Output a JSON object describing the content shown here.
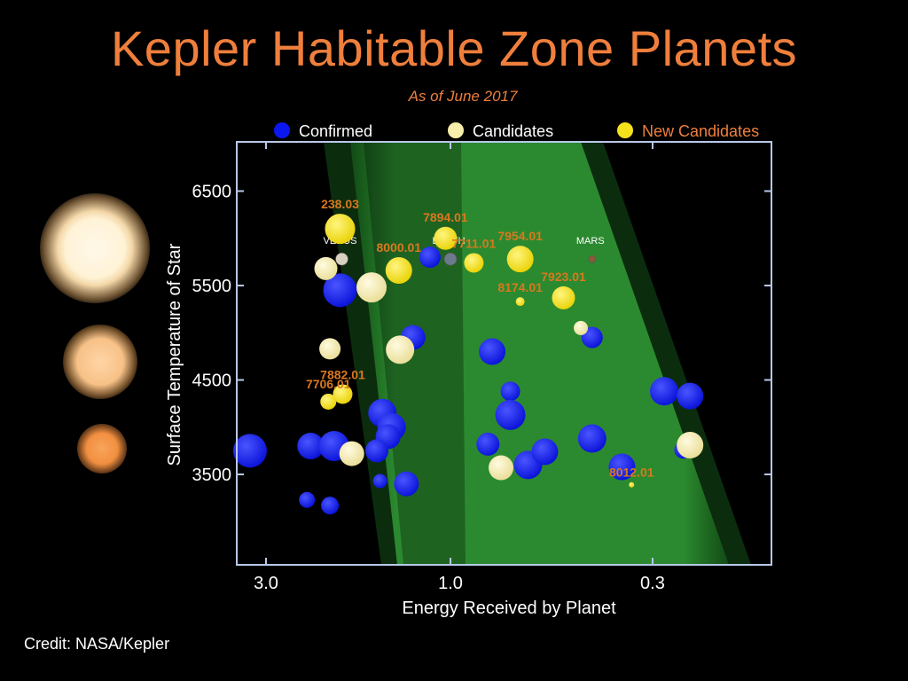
{
  "title": "Kepler Habitable Zone Planets",
  "subtitle": "As of June 2017",
  "credit": "Credit: NASA/Kepler",
  "colors": {
    "confirmed": "#0a17f0",
    "candidates": "#f6eeaa",
    "new_candidates": "#f5e21c",
    "label": "#d9781f",
    "hz_green": "#2b7a2b"
  },
  "legend": [
    {
      "key": "confirmed",
      "label": "Confirmed"
    },
    {
      "key": "candidates",
      "label": "Candidates"
    },
    {
      "key": "new_candidates",
      "label": "New Candidates"
    }
  ],
  "chart_data": {
    "type": "scatter",
    "title": "Kepler Habitable Zone Planets",
    "subtitle": "As of June 2017",
    "xlabel": "Energy Received by Planet",
    "ylabel": "Surface Temperature of Star",
    "x_scale": "log, reversed",
    "xlim": [
      4.0,
      0.2
    ],
    "ylim": [
      2600,
      7000
    ],
    "x_ticks": [
      "3.0",
      "1.0",
      "0.3"
    ],
    "y_ticks": [
      "6500",
      "5500",
      "4500",
      "3500"
    ],
    "legend_position": "top",
    "series": [
      {
        "name": "Confirmed",
        "points": [
          {
            "x": 3.3,
            "y": 3750,
            "size": 19
          },
          {
            "x": 2.3,
            "y": 3800,
            "size": 15
          },
          {
            "x": 2.0,
            "y": 3800,
            "size": 17
          },
          {
            "x": 1.93,
            "y": 5450,
            "size": 19
          },
          {
            "x": 1.5,
            "y": 4150,
            "size": 16
          },
          {
            "x": 1.42,
            "y": 4000,
            "size": 16
          },
          {
            "x": 1.45,
            "y": 3900,
            "size": 14
          },
          {
            "x": 1.55,
            "y": 3750,
            "size": 13
          },
          {
            "x": 1.25,
            "y": 4950,
            "size": 14
          },
          {
            "x": 1.3,
            "y": 3400,
            "size": 14
          },
          {
            "x": 1.52,
            "y": 3430,
            "size": 8
          },
          {
            "x": 2.35,
            "y": 3230,
            "size": 9
          },
          {
            "x": 2.05,
            "y": 3170,
            "size": 10
          },
          {
            "x": 1.13,
            "y": 5800,
            "size": 12
          },
          {
            "x": 0.78,
            "y": 4800,
            "size": 15
          },
          {
            "x": 0.7,
            "y": 4380,
            "size": 11
          },
          {
            "x": 0.7,
            "y": 4130,
            "size": 17
          },
          {
            "x": 0.8,
            "y": 3820,
            "size": 13
          },
          {
            "x": 0.63,
            "y": 3600,
            "size": 16
          },
          {
            "x": 0.57,
            "y": 3740,
            "size": 15
          },
          {
            "x": 0.43,
            "y": 4950,
            "size": 12
          },
          {
            "x": 0.43,
            "y": 3880,
            "size": 16
          },
          {
            "x": 0.36,
            "y": 3580,
            "size": 15
          },
          {
            "x": 0.28,
            "y": 4380,
            "size": 16
          },
          {
            "x": 0.24,
            "y": 4330,
            "size": 15
          },
          {
            "x": 0.25,
            "y": 3760,
            "size": 10
          }
        ]
      },
      {
        "name": "Candidates",
        "points": [
          {
            "x": 2.1,
            "y": 5680,
            "size": 13
          },
          {
            "x": 1.6,
            "y": 5480,
            "size": 17
          },
          {
            "x": 2.05,
            "y": 4830,
            "size": 12
          },
          {
            "x": 1.35,
            "y": 4820,
            "size": 16
          },
          {
            "x": 1.8,
            "y": 3720,
            "size": 14
          },
          {
            "x": 0.74,
            "y": 3570,
            "size": 14
          },
          {
            "x": 0.46,
            "y": 5050,
            "size": 8
          },
          {
            "x": 0.24,
            "y": 3810,
            "size": 15
          }
        ]
      },
      {
        "name": "New Candidates",
        "points": [
          {
            "x": 1.93,
            "y": 6100,
            "size": 17,
            "label": "238.03"
          },
          {
            "x": 1.03,
            "y": 6000,
            "size": 13,
            "label": "7894.01"
          },
          {
            "x": 0.66,
            "y": 5780,
            "size": 15,
            "label": "7954.01"
          },
          {
            "x": 1.36,
            "y": 5660,
            "size": 15,
            "label": "8000.01"
          },
          {
            "x": 0.87,
            "y": 5740,
            "size": 11,
            "label": "7711.01"
          },
          {
            "x": 0.51,
            "y": 5370,
            "size": 13,
            "label": "7923.01"
          },
          {
            "x": 0.66,
            "y": 5330,
            "size": 5,
            "label": "8174.01"
          },
          {
            "x": 1.9,
            "y": 4350,
            "size": 11,
            "label": "7882.01"
          },
          {
            "x": 2.07,
            "y": 4270,
            "size": 9,
            "label": "7706.01"
          },
          {
            "x": 0.34,
            "y": 3390,
            "size": 3,
            "label": "8012.01"
          }
        ]
      }
    ],
    "solar_system": [
      {
        "name": "VENUS",
        "x": 1.91,
        "y": 5780
      },
      {
        "name": "EARTH",
        "x": 1.0,
        "y": 5780
      },
      {
        "name": "MARS",
        "x": 0.43,
        "y": 5780
      }
    ]
  }
}
